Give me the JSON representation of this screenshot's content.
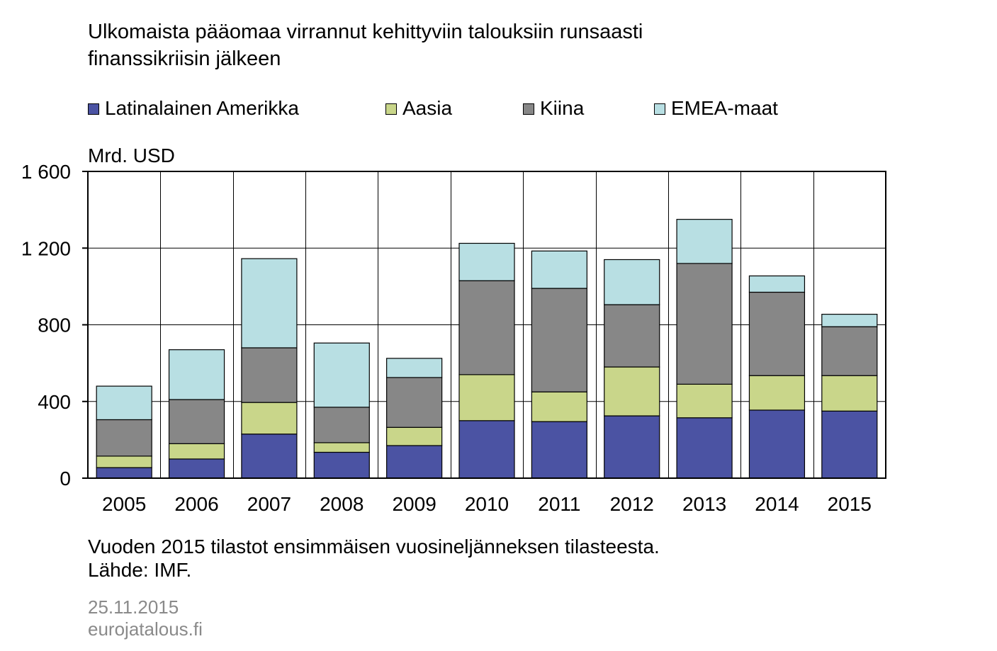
{
  "title_lines": [
    "Ulkomaista pääomaa virrannut kehittyviin talouksiin runsaasti",
    "finanssikriisin jälkeen"
  ],
  "unit_label": "Mrd. USD",
  "footnote_lines": [
    "Vuoden 2015 tilastot ensimmäisen vuosineljänneksen tilasteesta.",
    "Lähde: IMF."
  ],
  "date": "25.11.2015",
  "site": "eurojatalous.fi",
  "colors": {
    "latam": "#4b53a3",
    "asia": "#c9d68a",
    "china": "#878787",
    "emea": "#b8dfe3"
  },
  "chart_data": {
    "type": "bar",
    "stacked": true,
    "categories": [
      "2005",
      "2006",
      "2007",
      "2008",
      "2009",
      "2010",
      "2011",
      "2012",
      "2013",
      "2014",
      "2015"
    ],
    "series": [
      {
        "name": "Latinalainen Amerikka",
        "color_key": "latam",
        "values": [
          55,
          100,
          230,
          135,
          170,
          300,
          295,
          325,
          315,
          355,
          350
        ]
      },
      {
        "name": "Aasia",
        "color_key": "asia",
        "values": [
          60,
          80,
          165,
          50,
          95,
          240,
          155,
          255,
          175,
          180,
          185
        ]
      },
      {
        "name": "Kiina",
        "color_key": "china",
        "values": [
          190,
          230,
          285,
          185,
          260,
          490,
          540,
          325,
          630,
          435,
          255
        ]
      },
      {
        "name": "EMEA-maat",
        "color_key": "emea",
        "values": [
          175,
          260,
          465,
          335,
          100,
          195,
          195,
          235,
          230,
          85,
          65
        ]
      }
    ],
    "ylim": [
      0,
      1600
    ],
    "yticks": [
      0,
      400,
      800,
      1200,
      1600
    ],
    "ytick_labels": [
      "0",
      "400",
      "800",
      "1 200",
      "1 600"
    ],
    "grid": true,
    "legend_position": "top"
  }
}
